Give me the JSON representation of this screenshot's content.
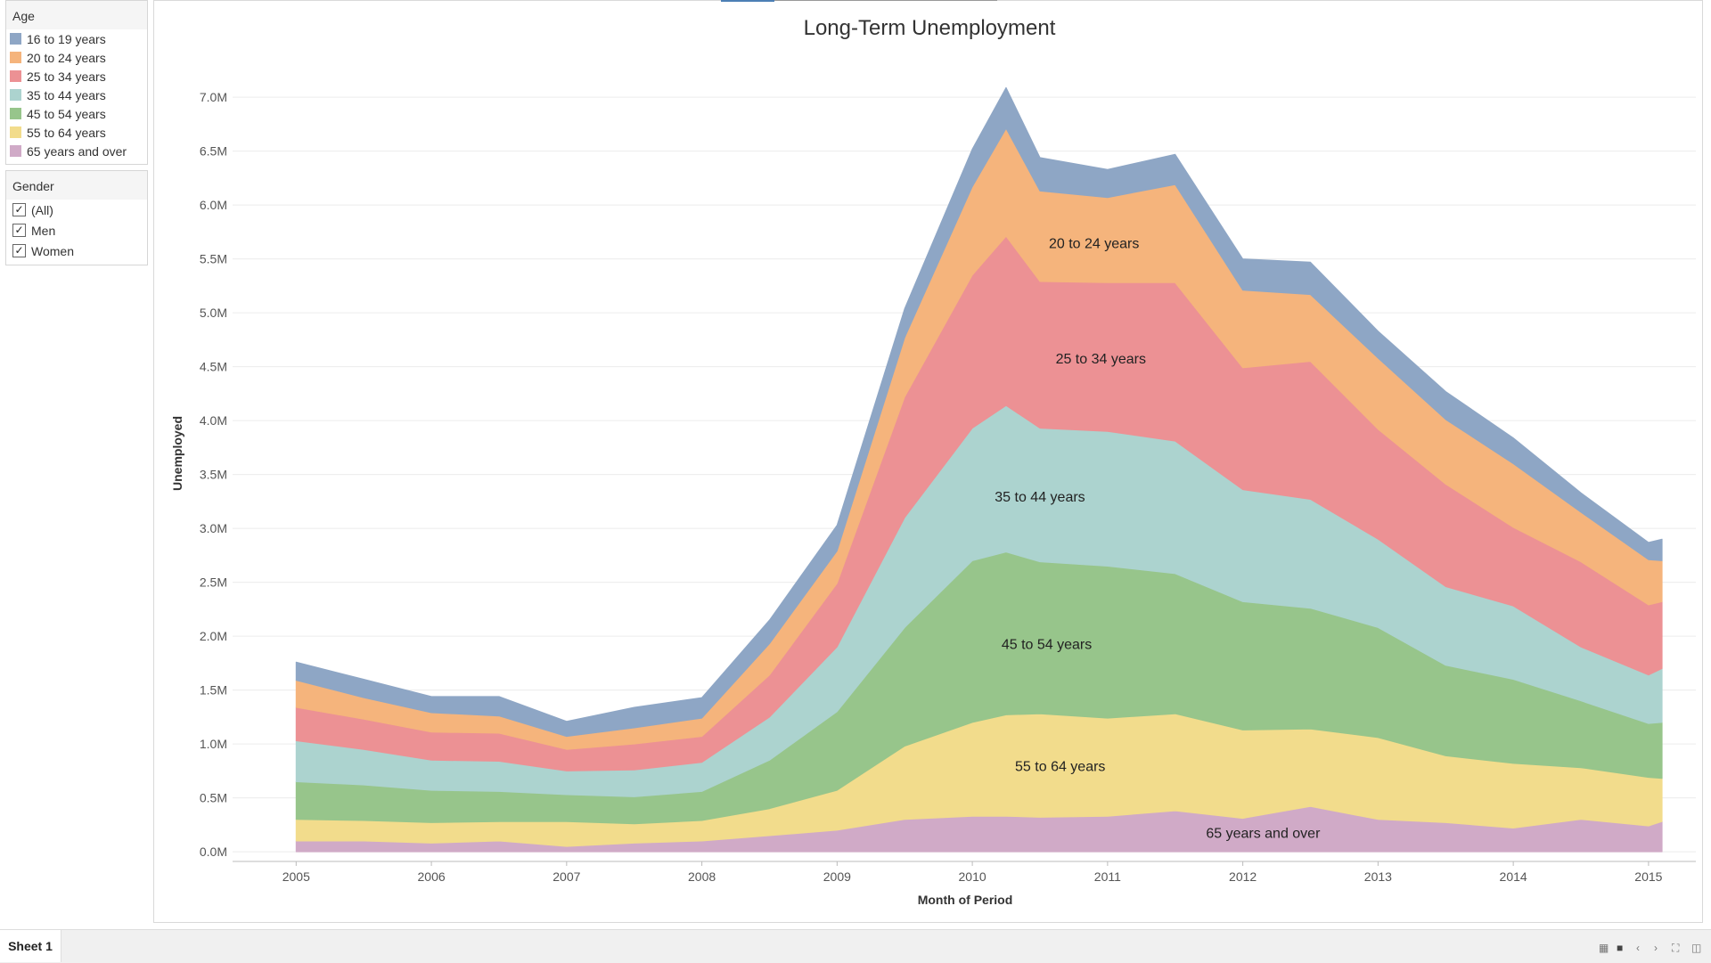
{
  "legend_age": {
    "title": "Age",
    "items": [
      {
        "label": "16 to 19 years",
        "color": "#8ea6c5"
      },
      {
        "label": "20 to 24 years",
        "color": "#f5b47c"
      },
      {
        "label": "25 to 34 years",
        "color": "#ec9194"
      },
      {
        "label": "35 to 44 years",
        "color": "#acd3cf"
      },
      {
        "label": "45 to 54 years",
        "color": "#97c58b"
      },
      {
        "label": "55 to 64 years",
        "color": "#f2dc8c"
      },
      {
        "label": "65 years and over",
        "color": "#d0aac7"
      }
    ]
  },
  "filter_gender": {
    "title": "Gender",
    "options": [
      {
        "label": "(All)",
        "checked": true
      },
      {
        "label": "Men",
        "checked": true
      },
      {
        "label": "Women",
        "checked": true
      }
    ]
  },
  "bottom": {
    "sheet_tab": "Sheet 1"
  },
  "chart_data": {
    "type": "area",
    "stacked": true,
    "title": "Long-Term Unemployment",
    "xlabel": "Month of Period",
    "ylabel": "Unemployed",
    "x": [
      2005.0,
      2005.5,
      2006.0,
      2006.5,
      2007.0,
      2007.5,
      2008.0,
      2008.5,
      2009.0,
      2009.5,
      2010.0,
      2010.25,
      2010.5,
      2011.0,
      2011.5,
      2012.0,
      2012.5,
      2013.0,
      2013.5,
      2014.0,
      2014.5,
      2015.0,
      2015.1
    ],
    "xticks": [
      2005,
      2006,
      2007,
      2008,
      2009,
      2010,
      2011,
      2012,
      2013,
      2014,
      2015
    ],
    "ylim": [
      0,
      7200000
    ],
    "yticks": [
      0,
      500000,
      1000000,
      1500000,
      2000000,
      2500000,
      3000000,
      3500000,
      4000000,
      4500000,
      5000000,
      5500000,
      6000000,
      6500000,
      7000000
    ],
    "ytick_labels": [
      "0.0M",
      "0.5M",
      "1.0M",
      "1.5M",
      "2.0M",
      "2.5M",
      "3.0M",
      "3.5M",
      "4.0M",
      "4.5M",
      "5.0M",
      "5.5M",
      "6.0M",
      "6.5M",
      "7.0M"
    ],
    "series": [
      {
        "name": "65 years and over",
        "color": "#d0aac7",
        "values": [
          100000,
          100000,
          80000,
          100000,
          50000,
          80000,
          100000,
          150000,
          200000,
          300000,
          330000,
          330000,
          320000,
          330000,
          380000,
          310000,
          420000,
          300000,
          270000,
          220000,
          300000,
          240000,
          280000
        ]
      },
      {
        "name": "55 to 64 years",
        "color": "#f2dc8c",
        "values": [
          200000,
          190000,
          190000,
          180000,
          230000,
          180000,
          190000,
          250000,
          370000,
          680000,
          870000,
          940000,
          960000,
          910000,
          900000,
          820000,
          720000,
          760000,
          620000,
          600000,
          480000,
          450000,
          400000
        ]
      },
      {
        "name": "45 to 54 years",
        "color": "#97c58b",
        "values": [
          350000,
          330000,
          300000,
          280000,
          250000,
          250000,
          270000,
          450000,
          730000,
          1100000,
          1500000,
          1510000,
          1410000,
          1410000,
          1300000,
          1190000,
          1120000,
          1020000,
          840000,
          780000,
          620000,
          500000,
          520000
        ]
      },
      {
        "name": "35 to 44 years",
        "color": "#acd3cf",
        "values": [
          380000,
          330000,
          280000,
          280000,
          220000,
          250000,
          270000,
          400000,
          600000,
          1020000,
          1230000,
          1360000,
          1240000,
          1250000,
          1230000,
          1040000,
          1010000,
          820000,
          730000,
          680000,
          500000,
          450000,
          500000
        ]
      },
      {
        "name": "25 to 34 years",
        "color": "#ec9194",
        "values": [
          310000,
          280000,
          260000,
          260000,
          200000,
          240000,
          240000,
          390000,
          590000,
          1120000,
          1420000,
          1570000,
          1360000,
          1380000,
          1470000,
          1130000,
          1280000,
          1020000,
          950000,
          730000,
          790000,
          650000,
          620000
        ]
      },
      {
        "name": "20 to 24 years",
        "color": "#f5b47c",
        "values": [
          250000,
          200000,
          180000,
          160000,
          120000,
          150000,
          170000,
          290000,
          300000,
          550000,
          820000,
          1000000,
          840000,
          790000,
          910000,
          720000,
          620000,
          660000,
          600000,
          590000,
          460000,
          420000,
          380000
        ]
      },
      {
        "name": "16 to 19 years",
        "color": "#8ea6c5",
        "values": [
          170000,
          170000,
          150000,
          180000,
          140000,
          190000,
          190000,
          220000,
          240000,
          270000,
          350000,
          380000,
          310000,
          260000,
          280000,
          290000,
          300000,
          250000,
          260000,
          240000,
          180000,
          160000,
          200000
        ]
      }
    ],
    "annotations": [
      {
        "text": "20 to 24 years",
        "x": 2010.9,
        "y": 5600000
      },
      {
        "text": "25 to 34 years",
        "x": 2010.95,
        "y": 4530000
      },
      {
        "text": "35 to 44 years",
        "x": 2010.5,
        "y": 3250000
      },
      {
        "text": "45 to 54 years",
        "x": 2010.55,
        "y": 1880000
      },
      {
        "text": "55 to 64 years",
        "x": 2010.65,
        "y": 750000
      },
      {
        "text": "65 years and over",
        "x": 2012.15,
        "y": 130000
      }
    ],
    "grid": true,
    "legend": "left"
  }
}
